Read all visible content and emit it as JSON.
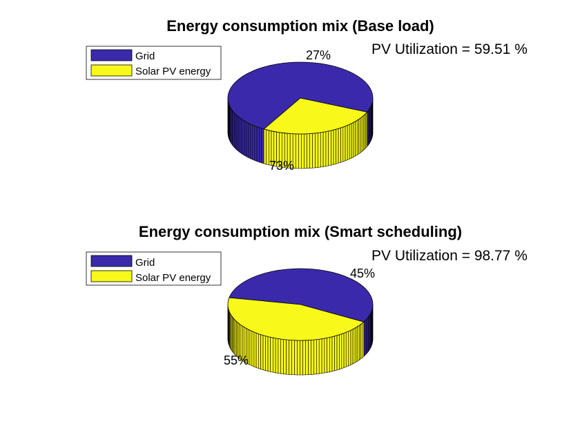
{
  "colors": {
    "grid": "#3a2aab",
    "solar": "#f8f81a",
    "edge": "#000000",
    "background": "#ffffff"
  },
  "chart_data": [
    {
      "type": "pie",
      "title": "Energy consumption mix (Base load)",
      "annotation": "PV Utilization = 59.51 %",
      "legend": [
        "Grid",
        "Solar PV energy"
      ],
      "legend_position": "top-left",
      "slices": [
        {
          "name": "Grid",
          "value": 73,
          "label": "73%"
        },
        {
          "name": "Solar PV energy",
          "value": 27,
          "label": "27%"
        }
      ]
    },
    {
      "type": "pie",
      "title": "Energy consumption mix (Smart scheduling)",
      "annotation": "PV Utilization = 98.77 %",
      "legend": [
        "Grid",
        "Solar PV energy"
      ],
      "legend_position": "top-left",
      "slices": [
        {
          "name": "Grid",
          "value": 55,
          "label": "55%"
        },
        {
          "name": "Solar PV energy",
          "value": 45,
          "label": "45%"
        }
      ]
    }
  ]
}
